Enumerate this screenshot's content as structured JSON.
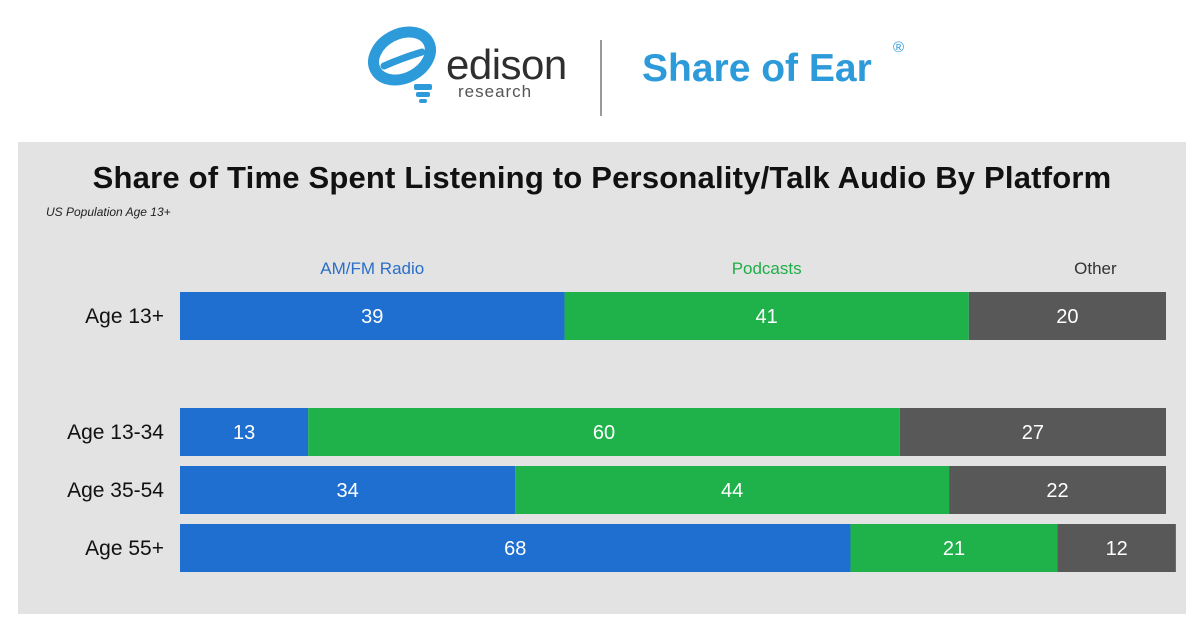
{
  "header": {
    "logo_word": "edison",
    "logo_subword": "research",
    "product_name": "Share of Ear",
    "registered_mark": "®"
  },
  "chart_data": {
    "type": "bar",
    "orientation": "horizontal",
    "stacked": true,
    "title": "Share of Time Spent Listening to Personality/Talk Audio By Platform",
    "subtitle": "US Population Age 13+",
    "categories": [
      "Age 13+",
      "Age 13-34",
      "Age 35-54",
      "Age 55+"
    ],
    "series": [
      {
        "name": "AM/FM Radio",
        "color": "#1f6fd1",
        "values": [
          39,
          13,
          34,
          68
        ]
      },
      {
        "name": "Podcasts",
        "color": "#1fb24a",
        "values": [
          41,
          60,
          44,
          21
        ]
      },
      {
        "name": "Other",
        "color": "#585858",
        "values": [
          20,
          27,
          22,
          12
        ]
      }
    ],
    "legend_colors": [
      "#2a6fc9",
      "#1fae48",
      "#333333"
    ],
    "xlim": [
      0,
      100
    ],
    "grid": false,
    "legend_position": "top, above first bar segments"
  }
}
